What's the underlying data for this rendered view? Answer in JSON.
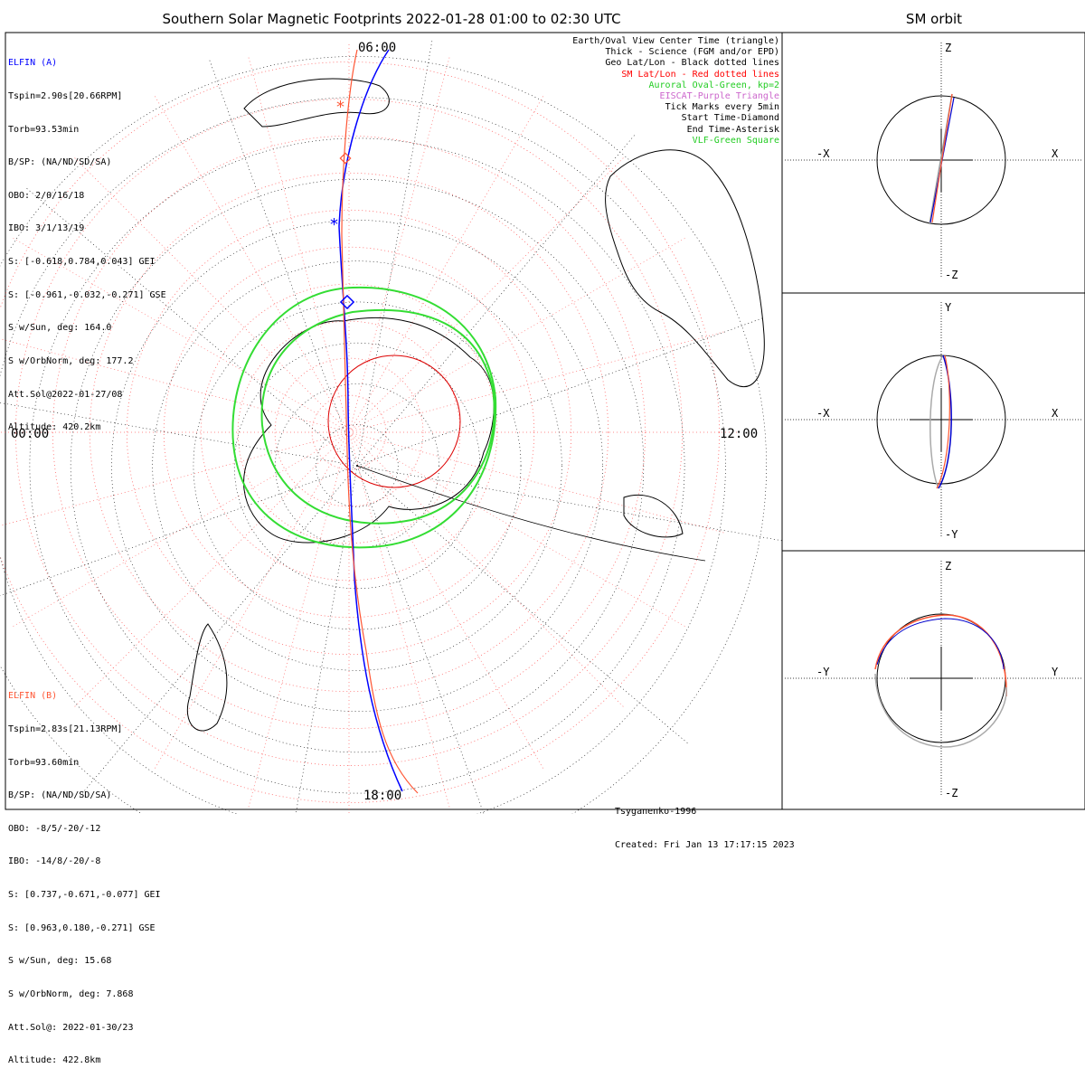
{
  "title": "Southern Solar Magnetic Footprints 2022-01-28 01:00 to 02:30 UTC",
  "sm_title": "SM orbit",
  "mlt_labels": {
    "top": "06:00",
    "left": "00:00",
    "right": "12:00",
    "bottom": "18:00"
  },
  "elfin_a": {
    "name": "ELFIN (A)",
    "color": "#0000ff",
    "lines": [
      "Tspin=2.90s[20.66RPM]",
      "Torb=93.53min",
      "B/SP: (NA/ND/SD/SA)",
      "OBO: 2/0/16/18",
      "IBO: 3/1/13/19",
      "S: [-0.618,0.784,0.043] GEI",
      "S: [-0.961,-0.032,-0.271] GSE",
      "S w/Sun, deg: 164.0",
      "S w/OrbNorm, deg: 177.2",
      "Att.Sol@2022-01-27/08",
      "Altitude: 420.2km"
    ]
  },
  "elfin_b": {
    "name": "ELFIN (B)",
    "color": "#ff5533",
    "lines": [
      "Tspin=2.83s[21.13RPM]",
      "Torb=93.60min",
      "B/SP: (NA/ND/SD/SA)",
      "OBO: -8/5/-20/-12",
      "IBO: -14/8/-20/-8",
      "S: [0.737,-0.671,-0.077] GEI",
      "S: [0.963,0.180,-0.271] GSE",
      "S w/Sun, deg: 15.68",
      "S w/OrbNorm, deg: 7.868",
      "Att.Sol@: 2022-01-30/23",
      "Altitude: 422.8km"
    ]
  },
  "legend": [
    {
      "text": "Earth/Oval View Center Time (triangle)",
      "color": "#000000"
    },
    {
      "text": "Thick - Science (FGM and/or EPD)",
      "color": "#000000"
    },
    {
      "text": "Geo Lat/Lon - Black dotted lines",
      "color": "#000000"
    },
    {
      "text": "SM Lat/Lon - Red dotted lines",
      "color": "#ff0000"
    },
    {
      "text": "Auroral Oval-Green, kp=2",
      "color": "#22cc22"
    },
    {
      "text": "EISCAT-Purple Triangle",
      "color": "#cc66cc"
    },
    {
      "text": "Tick Marks every 5min",
      "color": "#000000"
    },
    {
      "text": "Start Time-Diamond",
      "color": "#000000"
    },
    {
      "text": "End Time-Asterisk",
      "color": "#000000"
    },
    {
      "text": "VLF-Green Square",
      "color": "#22cc22"
    }
  ],
  "footer": {
    "model": "Tsyganenko-1996",
    "created": "Created: Fri Jan 13 17:17:15 2023"
  },
  "panels": [
    {
      "top": "Z",
      "bottom": "-Z",
      "left": "-X",
      "right": "X"
    },
    {
      "top": "Y",
      "bottom": "-Y",
      "left": "-X",
      "right": "X"
    },
    {
      "top": "Z",
      "bottom": "-Z",
      "left": "-Y",
      "right": "Y"
    }
  ]
}
